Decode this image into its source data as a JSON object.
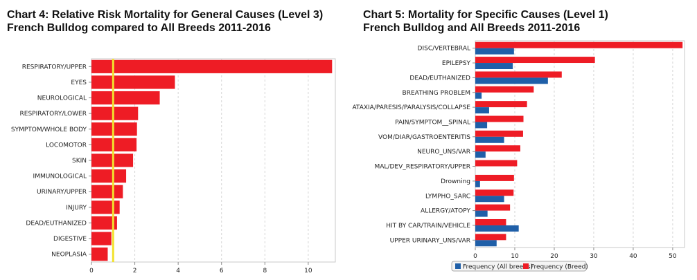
{
  "chart_data": [
    {
      "type": "bar",
      "orientation": "horizontal",
      "title": "Chart 4: Relative Risk Mortality for General Causes (Level 3)",
      "subtitle": "French Bulldog compared to All Breeds 2011-2016",
      "categories": [
        "RESPIRATORY/UPPER",
        "EYES",
        "NEUROLOGICAL",
        "RESPIRATORY/LOWER",
        "SYMPTOM/WHOLE BODY",
        "LOCOMOTOR",
        "SKIN",
        "IMMUNOLOGICAL",
        "URINARY/UPPER",
        "INJURY",
        "DEAD/EUTHANIZED",
        "DIGESTIVE",
        "NEOPLASIA"
      ],
      "values": [
        11.1,
        3.85,
        3.15,
        2.15,
        2.1,
        2.08,
        1.92,
        1.6,
        1.45,
        1.3,
        1.18,
        0.92,
        0.75
      ],
      "reference_line": 1,
      "xlim": [
        0,
        11.25
      ],
      "xticks": [
        "0",
        "2",
        "4",
        "6",
        "8",
        "10"
      ],
      "grid": "vertical dashed",
      "colors": {
        "bar": "#ee1c25",
        "reference": "#f2e22e"
      }
    },
    {
      "type": "bar",
      "orientation": "horizontal",
      "title": "Chart 5: Mortality for Specific Causes (Level 1)",
      "subtitle": "French Bulldog and All Breeds 2011-2016",
      "categories": [
        "DISC/VERTEBRAL",
        "EPILEPSY",
        "DEAD/EUTHANIZED",
        "BREATHING PROBLEM",
        "ATAXIA/PARESIS/PARALYSIS/COLLAPSE",
        "PAIN/SYMPTOM__SPINAL",
        "VOM/DIAR/GASTROENTERITIS",
        "NEURO_UNS/VAR",
        "MAL/DEV_RESPIRATORY/UPPER",
        "Drowning",
        "LYMPHO_SARC",
        "ALLERGY/ATOPY",
        "HIT BY CAR/TRAIN/VEHICLE",
        "UPPER URINARY_UNS/VAR"
      ],
      "series": [
        {
          "name": "Frequency (Breed)",
          "values": [
            52.5,
            30.3,
            21.9,
            14.8,
            13.1,
            12.2,
            12.1,
            11.4,
            10.6,
            9.8,
            9.7,
            8.8,
            7.8,
            7.8
          ]
        },
        {
          "name": "Frequency (All breeds)",
          "values": [
            9.8,
            9.5,
            18.4,
            1.6,
            3.5,
            3.0,
            7.3,
            2.6,
            0.0,
            1.2,
            7.3,
            3.1,
            11.0,
            5.4
          ]
        }
      ],
      "xlim": [
        0,
        53
      ],
      "xticks": [
        "0",
        "10",
        "20",
        "30",
        "40",
        "50"
      ],
      "grid": "vertical dashed",
      "legend": "bottom-center",
      "colors": {
        "Frequency (Breed)": "#ee1c25",
        "Frequency (All breeds)": "#1f5fa8"
      }
    }
  ]
}
